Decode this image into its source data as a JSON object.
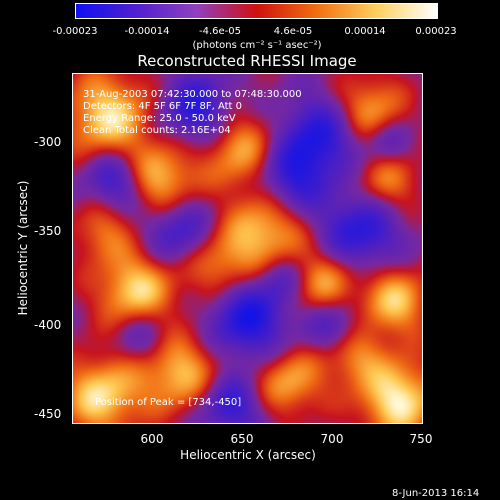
{
  "colorbar": {
    "ticks": [
      "-0.00023",
      "-0.00014",
      "-4.6e-05",
      "4.6e-05",
      "0.00014",
      "0.00023"
    ],
    "unit": "(photons cm⁻² s⁻¹ asec⁻²)",
    "range": [
      -0.00023,
      0.00023
    ],
    "colors": [
      "#1010f0",
      "#5020d0",
      "#9040c0",
      "#d01010",
      "#f07010",
      "#ffd060",
      "#ffffff"
    ]
  },
  "title": "Reconstructed RHESSI Image",
  "info": {
    "time": "31-Aug-2003 07:42:30.000 to 07:48:30.000",
    "detectors": "Detectors: 4F 5F 6F 7F 8F, Att 0",
    "energy": "Energy Range: 25.0 - 50.0 keV",
    "clean": "Clean     Total counts: 2.16E+04",
    "peak": "Position of Peak = [734,-450]"
  },
  "axes": {
    "x_label": "Heliocentric X (arcsec)",
    "y_label": "Heliocentric Y (arcsec)",
    "x_ticks": [
      "600",
      "650",
      "700",
      "750"
    ],
    "y_ticks": [
      "-300",
      "-350",
      "-400",
      "-450"
    ],
    "x_range": [
      557,
      750
    ],
    "y_range": [
      -455,
      -262
    ]
  },
  "footer": {
    "date": "8-Jun-2013 16:14"
  }
}
